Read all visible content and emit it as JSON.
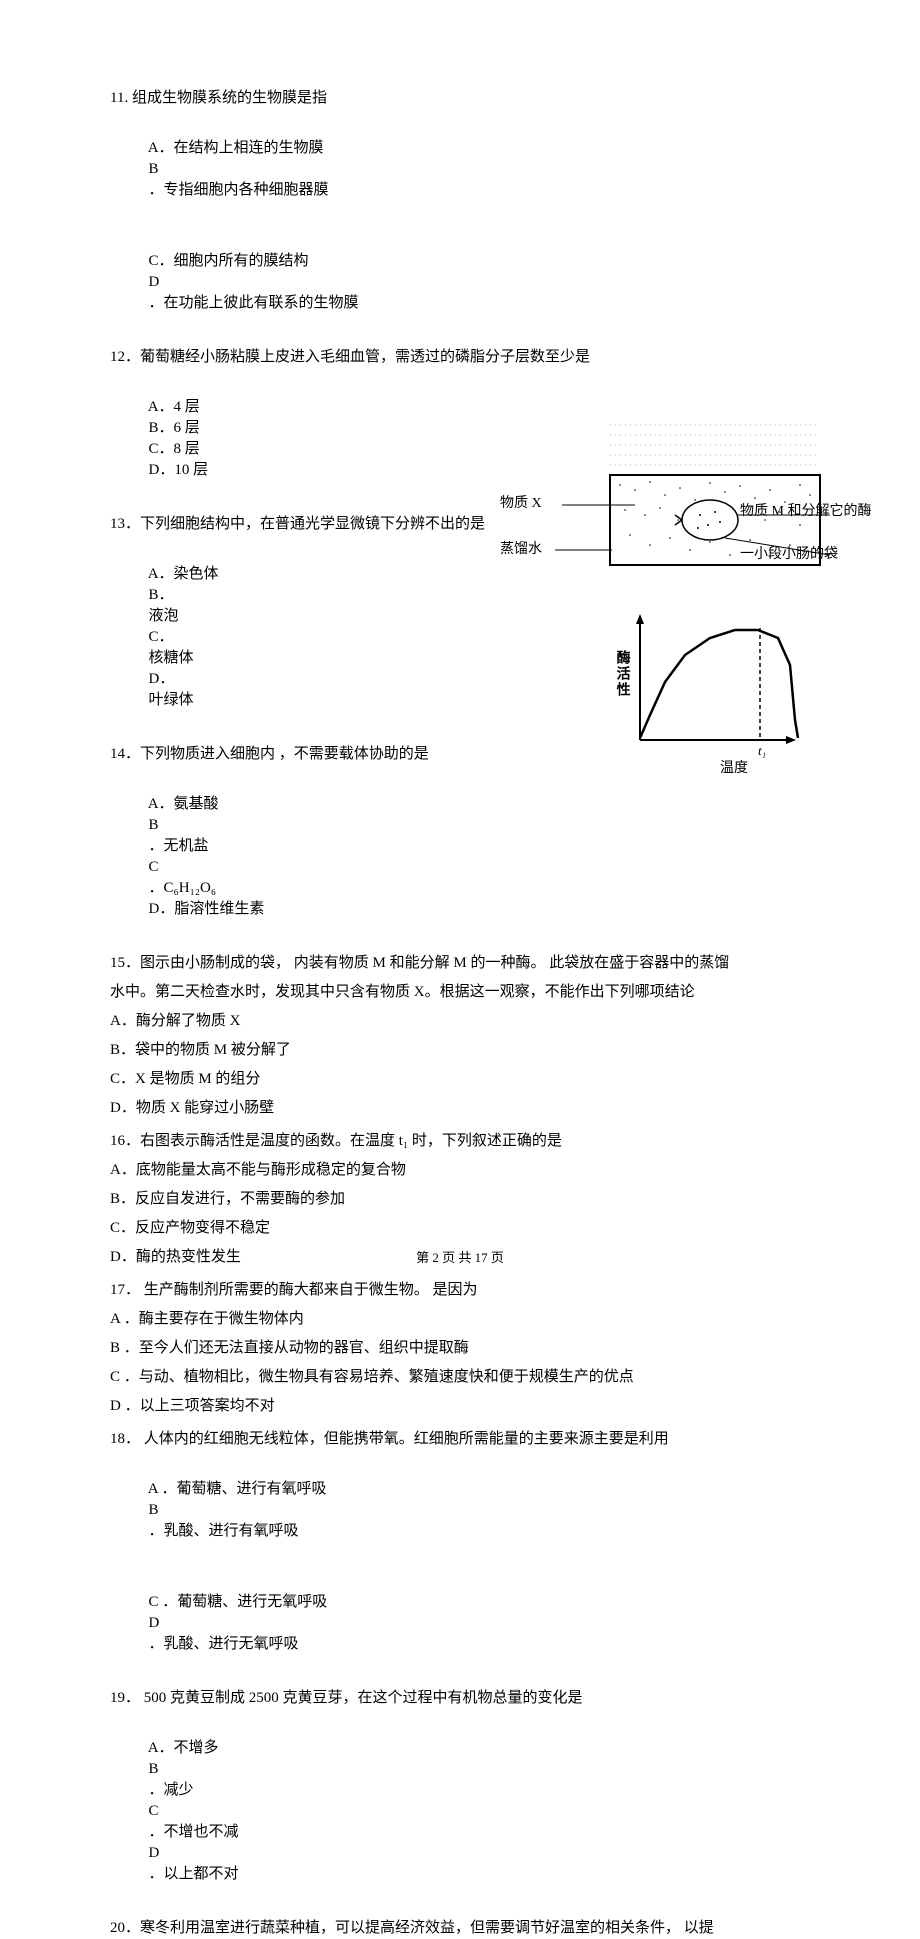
{
  "q11": {
    "stem": "11. 组成生物膜系统的生物膜是指",
    "A_label": "A．在结构上相连的生物膜",
    "B_pre": "B",
    "B_label": "．专指细胞内各种细胞器膜",
    "C_label": "C．细胞内所有的膜结构",
    "D_pre": "D",
    "D_label": "．在功能上彼此有联系的生物膜"
  },
  "q12": {
    "stem": "12．葡萄糖经小肠粘膜上皮进入毛细血管，需透过的磷脂分子层数至少是",
    "A": "A．4 层",
    "B": "B．6 层",
    "C": "C．8 层",
    "D": "D．10 层"
  },
  "q13": {
    "stem": "13．下列细胞结构中，在普通光学显微镜下分辨不出的是",
    "A": "A．染色体",
    "B": "B．",
    "B2": "液泡",
    "C": "C．",
    "C2": "核糖体",
    "D": "D．",
    "D2": "叶绿体"
  },
  "q14": {
    "stem_a": "14．下列物质进入细胞内",
    "stem_b": "，不需要载体协助的是",
    "A": "A．氨基酸",
    "B_pre": "B",
    "B": "．无机盐",
    "C_pre": "C",
    "C": "．C₆H₁₂O₆",
    "D": "D．脂溶性维生素"
  },
  "q15": {
    "stem_a": "15．图示由小肠制成的袋，",
    "stem_b": "内装有物质",
    "stem_c": "M 和能分解",
    "stem_d": "M 的一种酶。",
    "stem_e": "此袋放在盛于容器中的蒸馏",
    "line2_a": "水中。第二天检查水时，发现其中只含有物质",
    "line2_b": "X。根据这一观察，不能作出下列哪项结论",
    "A_a": "A．酶分解了物质",
    "A_b": "X",
    "B_a": "B．袋中的物质",
    "B_b": "M 被分解了",
    "C_a": "C．X 是物质",
    "C_b": "M 的组分",
    "D_a": "D．物质",
    "D_b": "X 能穿过小肠壁"
  },
  "q16": {
    "stem_a": "16．右图表示酶活性是温度的函数。在温度",
    "stem_b": "t₁ 时，下列叙述正确的是",
    "A": "A．底物能量太高不能与酶形成稳定的复合物",
    "B": "B．反应自发进行，不需要酶的参加",
    "C": "C．反应产物变得不稳定",
    "D": "D．酶的热变性发生"
  },
  "q17": {
    "stem_a": "17．",
    "stem_b": "生产酶制剂所需要的酶大都来自于微生物。",
    "stem_c": "是因为",
    "A": "A ．酶主要存在于微生物体内",
    "B": "B ．至今人们还无法直接从动物的器官、组织中提取酶",
    "C": "C ．与动、植物相比，微生物具有容易培养、繁殖速度快和便于规模生产的优点",
    "D": "D ．以上三项答案均不对"
  },
  "q18": {
    "stem_a": "18．",
    "stem_b": "人体内的红细胞无线粒体，但能携带氧。红细胞所需能量的主要来源主要是利用",
    "A": "A ．葡萄糖、进行有氧呼吸",
    "B_pre": "B",
    "B": "．乳酸、进行有氧呼吸",
    "C": "C ．葡萄糖、进行无氧呼吸",
    "D_pre": "D",
    "D": "．乳酸、进行无氧呼吸"
  },
  "q19": {
    "stem_a": "19．",
    "stem_b": "500 克黄豆制成",
    "stem_c": "2500 克黄豆芽，在这个过程中有机物总量的变化是",
    "A": "A．不增多",
    "B_pre": "B",
    "B": "．减少",
    "C_pre": "C",
    "C": "．不增也不减",
    "D_pre": "D",
    "D": "．以上都不对"
  },
  "q20": {
    "stem_a": "20．寒冬利用温室进行蔬菜种植，可以提高经济效益，但需要调节好温室的相关条件，",
    "stem_b": "以提"
  },
  "footer": {
    "a": "第",
    "b": "2",
    "c": "页 共",
    "d": "17",
    "e": "页"
  },
  "fig15": {
    "label_x": "物质 X",
    "label_water": "蒸馏水",
    "label_m": "物质 M 和分解它的酶",
    "label_bag": "一小段小肠的袋",
    "colors": {
      "line": "#000000",
      "dotfill": "#ffffff",
      "container": "#000000"
    }
  },
  "fig16": {
    "ylabel": "酶活性",
    "xlabel": "温度",
    "t1": "t₁",
    "colors": {
      "axis": "#000000",
      "curve": "#000000",
      "dash": "#000000"
    },
    "curve": {
      "x": [
        0,
        10,
        25,
        45,
        70,
        95,
        118,
        138,
        150,
        155,
        158
      ],
      "y": [
        118,
        95,
        62,
        35,
        18,
        10,
        10,
        18,
        45,
        100,
        118
      ]
    },
    "t1_x": 150,
    "xlim": [
      0,
      170
    ],
    "ylim": [
      0,
      130
    ]
  }
}
